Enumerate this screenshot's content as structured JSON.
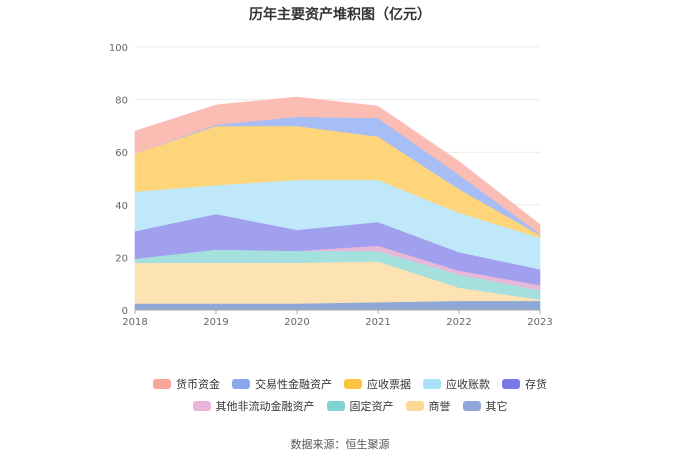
{
  "chart_data": {
    "type": "area",
    "title": "历年主要资产堆积图（亿元）",
    "x": [
      "2018",
      "2019",
      "2020",
      "2021",
      "2022",
      "2023"
    ],
    "ylim": [
      0,
      100
    ],
    "yticks": [
      0,
      20,
      40,
      60,
      80,
      100
    ],
    "series": [
      {
        "name": "其它",
        "color": "#8fa9d6",
        "values": [
          2.5,
          2.5,
          2.5,
          3,
          3.5,
          3.5
        ]
      },
      {
        "name": "商誉",
        "color": "#fde2b4",
        "values": [
          15.5,
          15.5,
          15.5,
          15.5,
          5,
          0.5
        ]
      },
      {
        "name": "固定资产",
        "color": "#a4e0de",
        "values": [
          1.5,
          5,
          4.5,
          4,
          5,
          3.5
        ]
      },
      {
        "name": "其他非流动金融资产",
        "color": "#e8b8d8",
        "values": [
          0,
          0,
          0,
          2,
          1.5,
          2
        ]
      },
      {
        "name": "存货",
        "color": "#a0a0ef",
        "values": [
          10.5,
          13.5,
          8,
          9,
          7,
          6
        ]
      },
      {
        "name": "应收账款",
        "color": "#bfe9fb",
        "values": [
          15,
          11,
          19,
          16,
          15,
          12
        ]
      },
      {
        "name": "应收票据",
        "color": "#fed57b",
        "values": [
          14.5,
          22.5,
          20.5,
          16.5,
          9,
          1
        ]
      },
      {
        "name": "交易性金融资产",
        "color": "#a6bdf5",
        "values": [
          0,
          0.5,
          3.5,
          7,
          5.5,
          0.5
        ]
      },
      {
        "name": "货币资金",
        "color": "#fbbcb4",
        "values": [
          8.5,
          7.5,
          7.5,
          4.5,
          5,
          3.5
        ]
      }
    ],
    "legend_rows": [
      [
        {
          "name": "货币资金",
          "color": "#f9a59a"
        },
        {
          "name": "交易性金融资产",
          "color": "#8aa8f0"
        },
        {
          "name": "应收票据",
          "color": "#fcc541"
        },
        {
          "name": "应收账款",
          "color": "#a7e0f8"
        },
        {
          "name": "存货",
          "color": "#7b77e9"
        }
      ],
      [
        {
          "name": "其他非流动金融资产",
          "color": "#e9b4d9"
        },
        {
          "name": "固定资产",
          "color": "#7fd3d0"
        },
        {
          "name": "商誉",
          "color": "#fcd895"
        },
        {
          "name": "其它",
          "color": "#8ea7d8"
        }
      ]
    ]
  },
  "source": "数据来源：恒生聚源"
}
